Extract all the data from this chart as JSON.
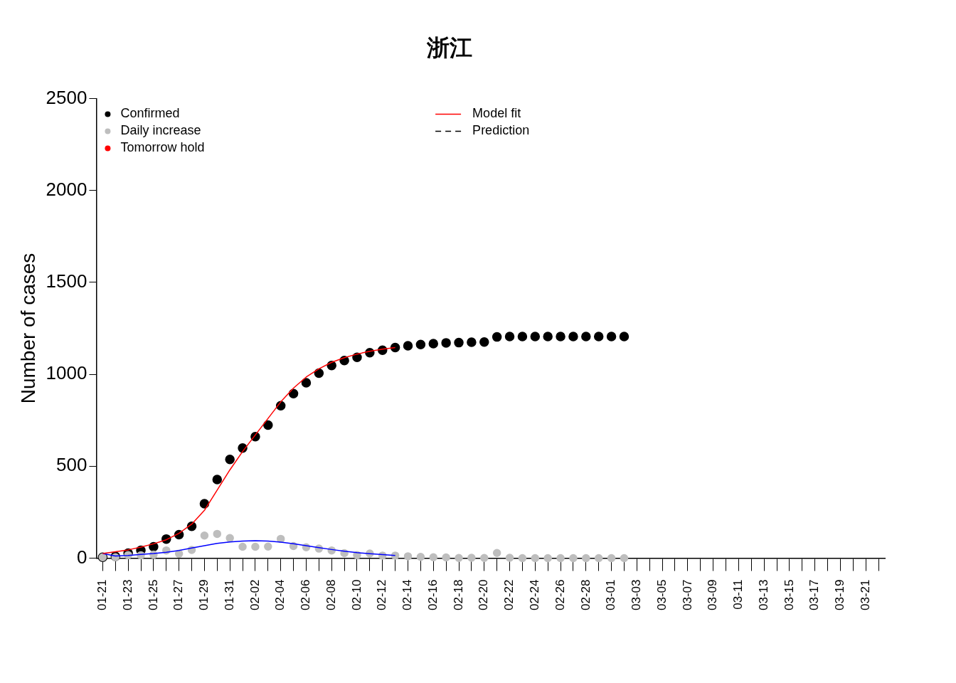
{
  "chart_data": {
    "type": "scatter",
    "title": "浙江",
    "ylabel": "Number of cases",
    "categories": [
      "01-21",
      null,
      "01-23",
      null,
      "01-25",
      null,
      "01-27",
      null,
      "01-29",
      null,
      "01-31",
      null,
      "02-02",
      null,
      "02-04",
      null,
      "02-06",
      null,
      "02-08",
      null,
      "02-10",
      null,
      "02-12",
      null,
      "02-14",
      null,
      "02-16",
      null,
      "02-18",
      null,
      "02-20",
      null,
      "02-22",
      null,
      "02-24",
      null,
      "02-26",
      null,
      "02-28",
      null,
      "03-01",
      null,
      "03-03",
      null,
      "03-05",
      null,
      "03-07",
      null,
      "03-09",
      null,
      "03-11",
      null,
      "03-13",
      null,
      "03-15",
      null,
      "03-17",
      null,
      "03-19",
      null,
      "03-21",
      null
    ],
    "series": [
      {
        "name": "Confirmed",
        "marker": "circle",
        "color": "#000000",
        "values": [
          5,
          10,
          27,
          43,
          62,
          104,
          128,
          173,
          296,
          428,
          537,
          599,
          661,
          724,
          829,
          895,
          954,
          1006,
          1048,
          1075,
          1092,
          1117,
          1131,
          1145,
          1155,
          1162,
          1167,
          1171,
          1172,
          1174,
          1175,
          1203,
          1205,
          1205,
          1205,
          1205,
          1205,
          1205,
          1205,
          1205,
          1205,
          1205,
          null,
          null,
          null,
          null,
          null,
          null,
          null,
          null,
          null,
          null,
          null,
          null,
          null,
          null,
          null,
          null,
          null,
          null,
          null,
          null
        ]
      },
      {
        "name": "Daily increase",
        "marker": "circle",
        "color": "#bebebe",
        "values": [
          5,
          5,
          17,
          16,
          19,
          42,
          24,
          45,
          123,
          132,
          109,
          62,
          62,
          63,
          105,
          66,
          59,
          52,
          42,
          27,
          17,
          25,
          14,
          14,
          10,
          7,
          5,
          4,
          1,
          2,
          1,
          28,
          2,
          0,
          0,
          0,
          0,
          0,
          0,
          0,
          0,
          0,
          null,
          null,
          null,
          null,
          null,
          null,
          null,
          null,
          null,
          null,
          null,
          null,
          null,
          null,
          null,
          null,
          null,
          null,
          null,
          null
        ]
      },
      {
        "name": "Tomorrow hold",
        "marker": "circle",
        "color": "#ff0000",
        "values": [
          null,
          null,
          null,
          null,
          null,
          null,
          null,
          null,
          null,
          null,
          null,
          null,
          null,
          null,
          null,
          null,
          null,
          null,
          null,
          null,
          null,
          null,
          null,
          null,
          null,
          null,
          null,
          null,
          null,
          null,
          null,
          null,
          null,
          null,
          null,
          null,
          null,
          null,
          null,
          null,
          null,
          null,
          null,
          null,
          null,
          null,
          null,
          null,
          null,
          null,
          null,
          null,
          null,
          null,
          null,
          null,
          null,
          null,
          null,
          null,
          null,
          null
        ]
      },
      {
        "name": "Model fit",
        "type": "line",
        "marker": "none",
        "color": "#ff0000",
        "values": [
          25,
          35,
          45,
          60,
          78,
          100,
          135,
          185,
          260,
          370,
          480,
          580,
          670,
          760,
          850,
          925,
          985,
          1030,
          1065,
          1090,
          1110,
          1125,
          1137,
          1145,
          null,
          null,
          null,
          null,
          null,
          null,
          null,
          null,
          null,
          null,
          null,
          null,
          null,
          null,
          null,
          null,
          null,
          null,
          null,
          null,
          null,
          null,
          null,
          null,
          null,
          null,
          null,
          null,
          null,
          null,
          null,
          null,
          null,
          null,
          null,
          null,
          null,
          null
        ]
      },
      {
        "type": "line",
        "marker": "none",
        "color": "#0000ff",
        "values": [
          25,
          12,
          15,
          20,
          25,
          32,
          42,
          55,
          68,
          80,
          88,
          93,
          95,
          93,
          87,
          78,
          68,
          57,
          47,
          38,
          30,
          24,
          19,
          15,
          null,
          null,
          null,
          null,
          null,
          null,
          null,
          null,
          null,
          null,
          null,
          null,
          null,
          null,
          null,
          null,
          null,
          null,
          null,
          null,
          null,
          null,
          null,
          null,
          null,
          null,
          null,
          null,
          null,
          null,
          null,
          null,
          null,
          null,
          null,
          null,
          null,
          null
        ]
      },
      {
        "name": "Prediction",
        "type": "line",
        "marker": "none",
        "line_style": "dashed",
        "color": "#000000",
        "values": [
          null,
          null,
          null,
          null,
          null,
          null,
          null,
          null,
          null,
          null,
          null,
          null,
          null,
          null,
          null,
          null,
          null,
          null,
          null,
          null,
          null,
          null,
          null,
          null,
          null,
          null,
          null,
          null,
          null,
          null,
          null,
          null,
          null,
          null,
          null,
          null,
          null,
          null,
          null,
          null,
          null,
          null,
          null,
          null,
          null,
          null,
          null,
          null,
          null,
          null,
          null,
          null,
          null,
          null,
          null,
          null,
          null,
          null,
          null,
          null,
          null,
          null
        ]
      }
    ],
    "ylim": [
      0,
      2500
    ],
    "yticks": [
      0,
      500,
      1000,
      1500,
      2000,
      2500
    ],
    "grid": false,
    "legend": "top left"
  }
}
